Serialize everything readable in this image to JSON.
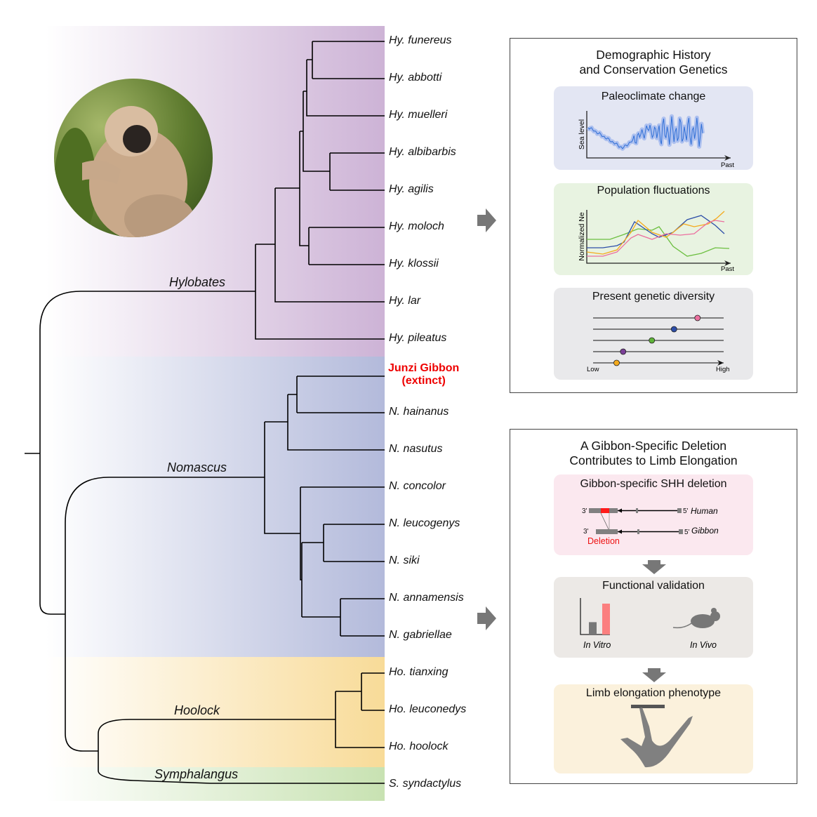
{
  "clades": [
    {
      "name": "Hylobates",
      "color": "#cdb3d6"
    },
    {
      "name": "Nomascus",
      "color": "#b3badb"
    },
    {
      "name": "Hoolock",
      "color": "#f8db98"
    },
    {
      "name": "Symphalangus",
      "color": "#c8e2b2"
    }
  ],
  "species": [
    "Hy. funereus",
    "Hy. abbotti",
    "Hy. muelleri",
    "Hy. albibarbis",
    "Hy. agilis",
    "Hy. moloch",
    "Hy. klossii",
    "Hy. lar",
    "Hy. pileatus",
    "N. hainanus",
    "N. nasutus",
    "N. concolor",
    "N. leucogenys",
    "N. siki",
    "N. annamensis",
    "N. gabriellae",
    "Ho. tianxing",
    "Ho. leuconedys",
    "Ho. hoolock",
    "S. syndactylus"
  ],
  "extinct": {
    "line1": "Junzi Gibbon",
    "line2": "(extinct)",
    "color": "#ee0000"
  },
  "photo": {
    "subject": "gibbon-photo"
  },
  "box1": {
    "title_line1": "Demographic History",
    "title_line2": "and Conservation Genetics",
    "paleo": {
      "title": "Paleoclimate change",
      "ylabel": "Sea level",
      "xlabel": "Past",
      "color": "#2f6fd6",
      "bg": "#e3e6f3"
    },
    "pop": {
      "title": "Population fluctuations",
      "ylabel": "Normalized Ne",
      "xlabel": "Past",
      "bg": "#e8f3e1",
      "series_colors": [
        "#6cbf40",
        "#2d4ea8",
        "#f4aa1c",
        "#ec6f9f"
      ]
    },
    "diversity": {
      "title": "Present genetic diversity",
      "low": "Low",
      "high": "High",
      "bg": "#e9e9eb",
      "points": [
        {
          "color": "#ec6f9f",
          "value": 0.8
        },
        {
          "color": "#2d4ea8",
          "value": 0.62
        },
        {
          "color": "#5fb43a",
          "value": 0.45
        },
        {
          "color": "#7b3f98",
          "value": 0.23
        },
        {
          "color": "#f4aa1c",
          "value": 0.18
        }
      ]
    }
  },
  "box2": {
    "title_line1": "A Gibbon-Specific Deletion",
    "title_line2": "Contributes to Limb Elongation",
    "shh": {
      "title": "Gibbon-specific SHH deletion",
      "bg": "#fbe8ef",
      "human": "Human",
      "gibbon": "Gibbon",
      "three": "3'",
      "five": "5'",
      "deletion": "Deletion",
      "deletion_color": "#ee1111"
    },
    "func": {
      "title": "Functional validation",
      "bg": "#ece9e6",
      "in_vitro": "In Vitro",
      "in_vivo": "In Vivo",
      "bars": [
        {
          "color": "#777777",
          "value": 0.4
        },
        {
          "color": "#fb7f7f",
          "value": 1.0
        }
      ]
    },
    "limb": {
      "title": "Limb elongation phenotype",
      "bg": "#fbf1dc"
    }
  }
}
